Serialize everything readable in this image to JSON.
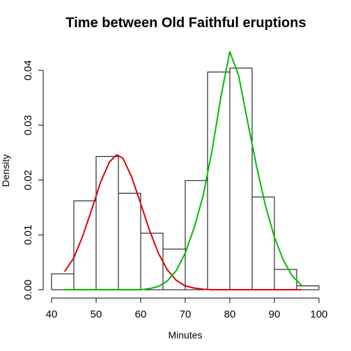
{
  "chart_data": {
    "type": "bar",
    "title": "Time between Old Faithful eruptions",
    "xlabel": "Minutes",
    "ylabel": "Density",
    "xlim": [
      40,
      100
    ],
    "ylim": [
      0,
      0.04
    ],
    "x_ticks": [
      40,
      50,
      60,
      70,
      80,
      90,
      100
    ],
    "y_ticks": [
      0.0,
      0.01,
      0.02,
      0.03,
      0.04
    ],
    "x_tick_labels": [
      "40",
      "50",
      "60",
      "70",
      "80",
      "90",
      "100"
    ],
    "y_tick_labels": [
      "0.00",
      "0.01",
      "0.02",
      "0.03",
      "0.04"
    ],
    "grid": false,
    "legend": false,
    "histogram": {
      "bin_edges": [
        40,
        45,
        50,
        55,
        60,
        65,
        70,
        75,
        80,
        85,
        90,
        95,
        100
      ],
      "density": [
        0.0029,
        0.0162,
        0.0243,
        0.0176,
        0.0103,
        0.0074,
        0.0199,
        0.0397,
        0.0404,
        0.0169,
        0.0037,
        0.0007
      ],
      "fill": "#ffffff",
      "stroke": "#000000"
    },
    "series": [
      {
        "color": "#dd0000",
        "x": [
          43,
          45,
          47,
          49,
          51,
          53,
          54.6,
          56,
          58,
          60,
          62,
          64,
          66,
          68,
          70,
          72,
          74,
          76,
          80,
          85,
          90,
          96
        ],
        "y": [
          0.0034,
          0.0058,
          0.0098,
          0.0146,
          0.0196,
          0.0233,
          0.0246,
          0.024,
          0.0205,
          0.0157,
          0.0108,
          0.0066,
          0.0036,
          0.0017,
          0.0007,
          0.0003,
          0.0001,
          0.0,
          0.0,
          0.0,
          0.0,
          0.0
        ]
      },
      {
        "color": "#00bb00",
        "x": [
          43,
          50,
          55,
          60,
          62,
          64,
          66,
          68,
          70,
          72,
          74,
          76,
          78,
          80,
          82,
          84,
          86,
          88,
          90,
          92,
          94,
          96
        ],
        "y": [
          0.0,
          0.0,
          0.0,
          0.0,
          0.0002,
          0.0006,
          0.0016,
          0.0035,
          0.0067,
          0.0113,
          0.0171,
          0.0253,
          0.0352,
          0.0434,
          0.039,
          0.0306,
          0.0225,
          0.0153,
          0.0096,
          0.0054,
          0.0025,
          0.0009
        ]
      }
    ]
  }
}
